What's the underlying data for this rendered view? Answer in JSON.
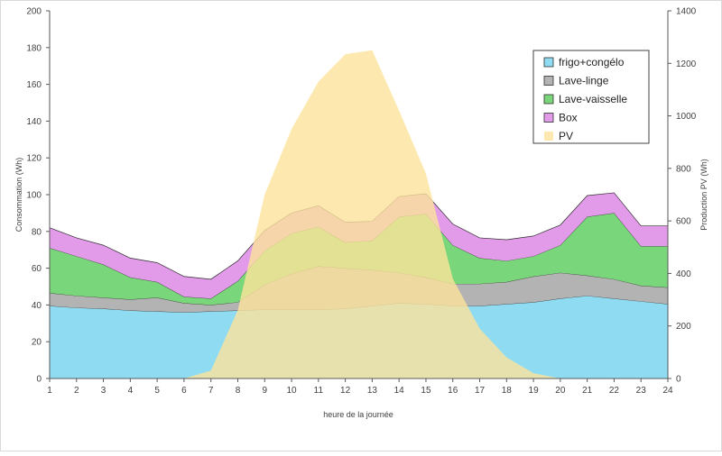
{
  "chart_data": {
    "type": "area",
    "xlabel": "heure de la journée",
    "ylabel_left": "Consommation (Wh)",
    "ylabel_right": "Production PV (Wh)",
    "x": [
      1,
      2,
      3,
      4,
      5,
      6,
      7,
      8,
      9,
      10,
      11,
      12,
      13,
      14,
      15,
      16,
      17,
      18,
      19,
      20,
      21,
      22,
      23,
      24
    ],
    "ylim_left": [
      0,
      200
    ],
    "ylim_right": [
      0,
      1400
    ],
    "yticks_left": [
      0,
      20,
      40,
      60,
      80,
      100,
      120,
      140,
      160,
      180,
      200
    ],
    "yticks_right": [
      0,
      200,
      400,
      600,
      800,
      1000,
      1200,
      1400
    ],
    "grid": false,
    "legend_position": "top-right",
    "series_stacked": [
      {
        "name": "frigo+congélo",
        "color": "#8fdcf2",
        "stroke": "#2f2f2f",
        "values": [
          39.5,
          38.5,
          38,
          37,
          36.5,
          36,
          36.5,
          37,
          37.5,
          37.5,
          37.5,
          38,
          39.5,
          41,
          40.5,
          39.5,
          39.5,
          40.5,
          41.5,
          43.5,
          45,
          43.5,
          42,
          40.5
        ]
      },
      {
        "name": "Lave-linge",
        "color": "#b3b3b3",
        "stroke": "#2f2f2f",
        "values": [
          7,
          6.5,
          6,
          6,
          7.5,
          5,
          3.5,
          4.5,
          13.5,
          19.5,
          23.5,
          22,
          19.5,
          16.5,
          14.5,
          12,
          12,
          12,
          14,
          14,
          11,
          10.5,
          8.5,
          9
        ]
      },
      {
        "name": "Lave-vaisselle",
        "color": "#7ad67a",
        "stroke": "#2f2f2f",
        "values": [
          24.5,
          21.5,
          18,
          12,
          8.5,
          3.5,
          3.5,
          11.5,
          18.5,
          22,
          21.5,
          14,
          16,
          30.5,
          34.5,
          21,
          14,
          11.5,
          11,
          15,
          32,
          36,
          21.5,
          22.5
        ]
      },
      {
        "name": "Box",
        "color": "#e29be8",
        "stroke": "#2f2f2f",
        "values": [
          11,
          10,
          10.5,
          10.5,
          10.5,
          11,
          10.5,
          11,
          11,
          11,
          11.5,
          11,
          10.5,
          11,
          11,
          11.5,
          11,
          11.5,
          11,
          11,
          11.5,
          11,
          11,
          11
        ]
      }
    ],
    "series_right": [
      {
        "name": "PV",
        "color": "#fde49b",
        "opacity": 0.8,
        "values": [
          0,
          0,
          0,
          0,
          0,
          0,
          30,
          260,
          700,
          950,
          1130,
          1235,
          1250,
          1020,
          780,
          380,
          190,
          80,
          20,
          0,
          0,
          0,
          0,
          0
        ]
      }
    ],
    "legend": [
      "frigo+congélo",
      "Lave-linge",
      "Lave-vaisselle",
      "Box",
      "PV"
    ]
  }
}
